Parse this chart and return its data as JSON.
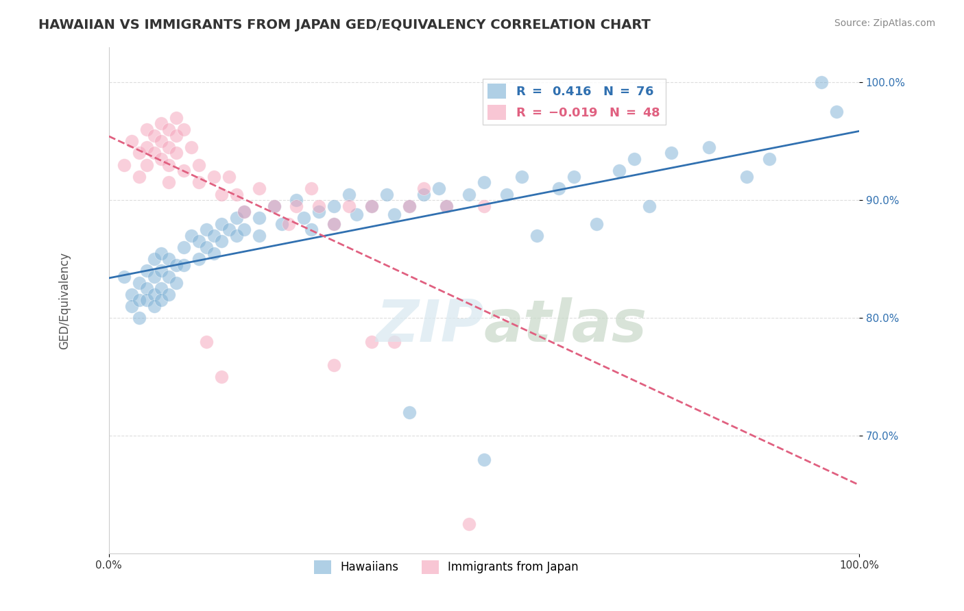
{
  "title": "HAWAIIAN VS IMMIGRANTS FROM JAPAN GED/EQUIVALENCY CORRELATION CHART",
  "source": "Source: ZipAtlas.com",
  "xlabel": "",
  "ylabel": "GED/Equivalency",
  "xlim": [
    0.0,
    1.0
  ],
  "ylim": [
    0.6,
    1.03
  ],
  "x_tick_labels": [
    "0.0%",
    "100.0%"
  ],
  "y_tick_labels": [
    "70.0%",
    "80.0%",
    "90.0%",
    "100.0%"
  ],
  "y_tick_positions": [
    0.7,
    0.8,
    0.9,
    1.0
  ],
  "legend_entries": [
    {
      "label": "R =  0.416   N = 76",
      "color": "#a8c4e0"
    },
    {
      "label": "R = -0.019   N = 48",
      "color": "#f4b8c8"
    }
  ],
  "r_blue": 0.416,
  "n_blue": 76,
  "r_pink": -0.019,
  "n_pink": 48,
  "blue_color": "#7bafd4",
  "pink_color": "#f4a0b8",
  "blue_line_color": "#3070b0",
  "pink_line_color": "#e06080",
  "watermark": "ZIPatlas",
  "background_color": "#ffffff",
  "grid_color": "#dddddd",
  "hawaiians_scatter": [
    [
      0.02,
      0.835
    ],
    [
      0.03,
      0.82
    ],
    [
      0.03,
      0.81
    ],
    [
      0.04,
      0.83
    ],
    [
      0.04,
      0.815
    ],
    [
      0.04,
      0.8
    ],
    [
      0.05,
      0.84
    ],
    [
      0.05,
      0.825
    ],
    [
      0.05,
      0.815
    ],
    [
      0.06,
      0.85
    ],
    [
      0.06,
      0.835
    ],
    [
      0.06,
      0.82
    ],
    [
      0.06,
      0.81
    ],
    [
      0.07,
      0.855
    ],
    [
      0.07,
      0.84
    ],
    [
      0.07,
      0.825
    ],
    [
      0.07,
      0.815
    ],
    [
      0.08,
      0.85
    ],
    [
      0.08,
      0.835
    ],
    [
      0.08,
      0.82
    ],
    [
      0.09,
      0.845
    ],
    [
      0.09,
      0.83
    ],
    [
      0.1,
      0.86
    ],
    [
      0.1,
      0.845
    ],
    [
      0.11,
      0.87
    ],
    [
      0.12,
      0.865
    ],
    [
      0.12,
      0.85
    ],
    [
      0.13,
      0.875
    ],
    [
      0.13,
      0.86
    ],
    [
      0.14,
      0.87
    ],
    [
      0.14,
      0.855
    ],
    [
      0.15,
      0.88
    ],
    [
      0.15,
      0.865
    ],
    [
      0.16,
      0.875
    ],
    [
      0.17,
      0.885
    ],
    [
      0.17,
      0.87
    ],
    [
      0.18,
      0.89
    ],
    [
      0.18,
      0.875
    ],
    [
      0.2,
      0.885
    ],
    [
      0.2,
      0.87
    ],
    [
      0.22,
      0.895
    ],
    [
      0.23,
      0.88
    ],
    [
      0.25,
      0.9
    ],
    [
      0.26,
      0.885
    ],
    [
      0.27,
      0.875
    ],
    [
      0.28,
      0.89
    ],
    [
      0.3,
      0.895
    ],
    [
      0.3,
      0.88
    ],
    [
      0.32,
      0.905
    ],
    [
      0.33,
      0.888
    ],
    [
      0.35,
      0.895
    ],
    [
      0.37,
      0.905
    ],
    [
      0.38,
      0.888
    ],
    [
      0.4,
      0.895
    ],
    [
      0.4,
      0.72
    ],
    [
      0.42,
      0.905
    ],
    [
      0.44,
      0.91
    ],
    [
      0.45,
      0.895
    ],
    [
      0.48,
      0.905
    ],
    [
      0.5,
      0.915
    ],
    [
      0.5,
      0.68
    ],
    [
      0.53,
      0.905
    ],
    [
      0.55,
      0.92
    ],
    [
      0.57,
      0.87
    ],
    [
      0.6,
      0.91
    ],
    [
      0.62,
      0.92
    ],
    [
      0.65,
      0.88
    ],
    [
      0.68,
      0.925
    ],
    [
      0.7,
      0.935
    ],
    [
      0.72,
      0.895
    ],
    [
      0.75,
      0.94
    ],
    [
      0.8,
      0.945
    ],
    [
      0.85,
      0.92
    ],
    [
      0.88,
      0.935
    ],
    [
      0.95,
      1.0
    ],
    [
      0.97,
      0.975
    ]
  ],
  "japan_scatter": [
    [
      0.02,
      0.93
    ],
    [
      0.03,
      0.95
    ],
    [
      0.04,
      0.94
    ],
    [
      0.04,
      0.92
    ],
    [
      0.05,
      0.96
    ],
    [
      0.05,
      0.945
    ],
    [
      0.05,
      0.93
    ],
    [
      0.06,
      0.955
    ],
    [
      0.06,
      0.94
    ],
    [
      0.07,
      0.965
    ],
    [
      0.07,
      0.95
    ],
    [
      0.07,
      0.935
    ],
    [
      0.08,
      0.96
    ],
    [
      0.08,
      0.945
    ],
    [
      0.08,
      0.93
    ],
    [
      0.08,
      0.915
    ],
    [
      0.09,
      0.97
    ],
    [
      0.09,
      0.955
    ],
    [
      0.09,
      0.94
    ],
    [
      0.1,
      0.925
    ],
    [
      0.1,
      0.96
    ],
    [
      0.11,
      0.945
    ],
    [
      0.12,
      0.93
    ],
    [
      0.12,
      0.915
    ],
    [
      0.13,
      0.78
    ],
    [
      0.14,
      0.92
    ],
    [
      0.15,
      0.75
    ],
    [
      0.15,
      0.905
    ],
    [
      0.16,
      0.92
    ],
    [
      0.17,
      0.905
    ],
    [
      0.18,
      0.89
    ],
    [
      0.2,
      0.91
    ],
    [
      0.22,
      0.895
    ],
    [
      0.24,
      0.88
    ],
    [
      0.25,
      0.895
    ],
    [
      0.27,
      0.91
    ],
    [
      0.28,
      0.895
    ],
    [
      0.3,
      0.88
    ],
    [
      0.3,
      0.76
    ],
    [
      0.32,
      0.895
    ],
    [
      0.35,
      0.78
    ],
    [
      0.35,
      0.895
    ],
    [
      0.38,
      0.78
    ],
    [
      0.4,
      0.895
    ],
    [
      0.42,
      0.91
    ],
    [
      0.45,
      0.895
    ],
    [
      0.48,
      0.625
    ],
    [
      0.5,
      0.895
    ]
  ]
}
